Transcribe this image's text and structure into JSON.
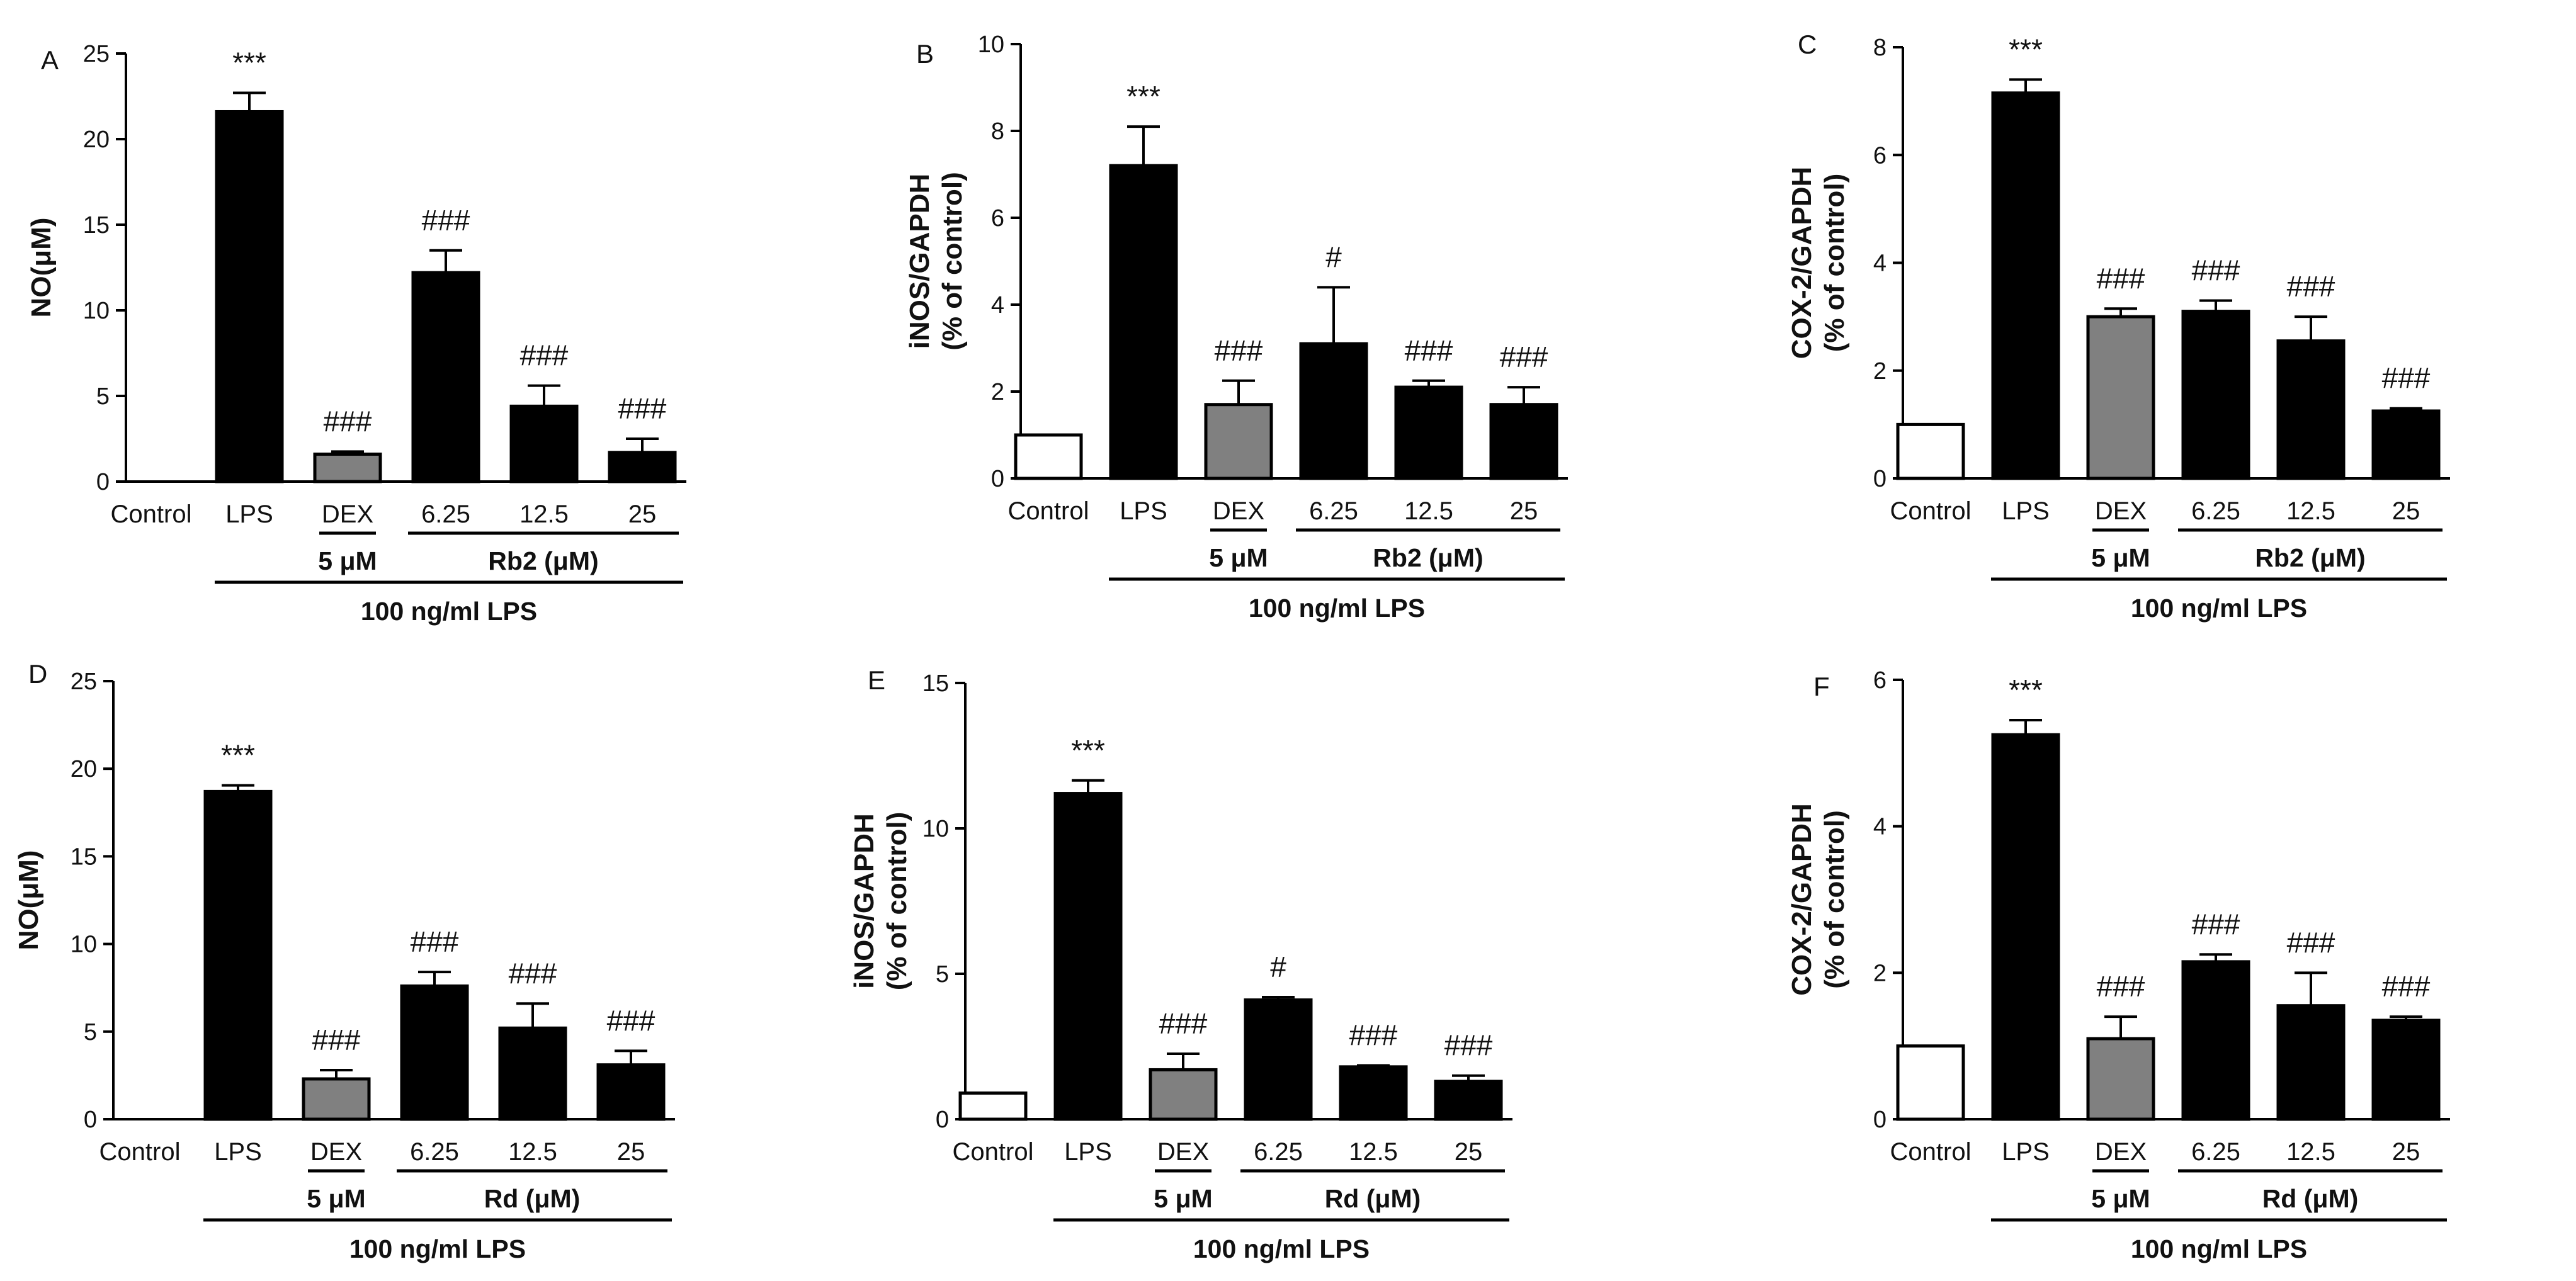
{
  "colors": {
    "control": "#ffffff",
    "lps": "#000000",
    "dex": "#808080",
    "treatment": "#000000"
  },
  "chart_data": [
    {
      "type": "bar",
      "panel": "A",
      "ylabel_lines": [
        "NO(μM)"
      ],
      "ylim": [
        0,
        25
      ],
      "yticks": [
        "0",
        "5",
        "10",
        "15",
        "20",
        "25"
      ],
      "categories": [
        "Control",
        "LPS",
        "DEX",
        "6.25",
        "12.5",
        "25"
      ],
      "values": [
        0,
        21.6,
        1.6,
        12.2,
        4.4,
        1.7
      ],
      "errors": [
        0,
        1.1,
        0.15,
        1.3,
        1.2,
        0.8
      ],
      "significance": [
        "",
        "***",
        "###",
        "###",
        "###",
        "###"
      ],
      "fill_keys": [
        "control",
        "lps",
        "dex",
        "treatment",
        "treatment",
        "treatment"
      ],
      "dex_label": "5 μM",
      "drug_label": "Rb2 (μM)",
      "lps_label": "100 ng/ml LPS"
    },
    {
      "type": "bar",
      "panel": "B",
      "ylabel_lines": [
        "iNOS/GAPDH",
        "(% of control)"
      ],
      "ylim": [
        0,
        10
      ],
      "yticks": [
        "0",
        "2",
        "4",
        "6",
        "8",
        "10"
      ],
      "categories": [
        "Control",
        "LPS",
        "DEX",
        "6.25",
        "12.5",
        "25"
      ],
      "values": [
        1.0,
        7.2,
        1.7,
        3.1,
        2.1,
        1.7
      ],
      "errors": [
        0,
        0.9,
        0.55,
        1.3,
        0.15,
        0.4
      ],
      "significance": [
        "",
        "***",
        "###",
        "#",
        "###",
        "###"
      ],
      "fill_keys": [
        "control",
        "lps",
        "dex",
        "treatment",
        "treatment",
        "treatment"
      ],
      "dex_label": "5 μM",
      "drug_label": "Rb2 (μM)",
      "lps_label": "100 ng/ml LPS"
    },
    {
      "type": "bar",
      "panel": "C",
      "ylabel_lines": [
        "COX-2/GAPDH",
        "(% of control)"
      ],
      "ylim": [
        0,
        8
      ],
      "yticks": [
        "0",
        "2",
        "4",
        "6",
        "8"
      ],
      "categories": [
        "Control",
        "LPS",
        "DEX",
        "6.25",
        "12.5",
        "25"
      ],
      "values": [
        1.0,
        7.15,
        3.0,
        3.1,
        2.55,
        1.25
      ],
      "errors": [
        0,
        0.25,
        0.15,
        0.2,
        0.45,
        0.05
      ],
      "significance": [
        "",
        "***",
        "###",
        "###",
        "###",
        "###"
      ],
      "fill_keys": [
        "control",
        "lps",
        "dex",
        "treatment",
        "treatment",
        "treatment"
      ],
      "dex_label": "5 μM",
      "drug_label": "Rb2 (μM)",
      "lps_label": "100 ng/ml LPS"
    },
    {
      "type": "bar",
      "panel": "D",
      "ylabel_lines": [
        "NO(μM)"
      ],
      "ylim": [
        0,
        25
      ],
      "yticks": [
        "0",
        "5",
        "10",
        "15",
        "20",
        "25"
      ],
      "categories": [
        "Control",
        "LPS",
        "DEX",
        "6.25",
        "12.5",
        "25"
      ],
      "values": [
        0,
        18.7,
        2.3,
        7.6,
        5.2,
        3.1
      ],
      "errors": [
        0,
        0.35,
        0.5,
        0.8,
        1.4,
        0.8
      ],
      "significance": [
        "",
        "***",
        "###",
        "###",
        "###",
        "###"
      ],
      "fill_keys": [
        "control",
        "lps",
        "dex",
        "treatment",
        "treatment",
        "treatment"
      ],
      "dex_label": "5 μM",
      "drug_label": "Rd (μM)",
      "lps_label": "100 ng/ml LPS"
    },
    {
      "type": "bar",
      "panel": "E",
      "ylabel_lines": [
        "iNOS/GAPDH",
        "(% of control)"
      ],
      "ylim": [
        0,
        15
      ],
      "yticks": [
        "0",
        "5",
        "10",
        "15"
      ],
      "categories": [
        "Control",
        "LPS",
        "DEX",
        "6.25",
        "12.5",
        "25"
      ],
      "values": [
        0.9,
        11.2,
        1.7,
        4.1,
        1.8,
        1.3
      ],
      "errors": [
        0,
        0.45,
        0.55,
        0.1,
        0.05,
        0.2
      ],
      "significance": [
        "",
        "***",
        "###",
        "#",
        "###",
        "###"
      ],
      "fill_keys": [
        "control",
        "lps",
        "dex",
        "treatment",
        "treatment",
        "treatment"
      ],
      "dex_label": "5 μM",
      "drug_label": "Rd (μM)",
      "lps_label": "100 ng/ml LPS"
    },
    {
      "type": "bar",
      "panel": "F",
      "ylabel_lines": [
        "COX-2/GAPDH",
        "(% of control)"
      ],
      "ylim": [
        0,
        6
      ],
      "yticks": [
        "0",
        "2",
        "4",
        "6"
      ],
      "categories": [
        "Control",
        "LPS",
        "DEX",
        "6.25",
        "12.5",
        "25"
      ],
      "values": [
        1.0,
        5.25,
        1.1,
        2.15,
        1.55,
        1.35
      ],
      "errors": [
        0,
        0.2,
        0.3,
        0.1,
        0.45,
        0.05
      ],
      "significance": [
        "",
        "***",
        "###",
        "###",
        "###",
        "###"
      ],
      "fill_keys": [
        "control",
        "lps",
        "dex",
        "treatment",
        "treatment",
        "treatment"
      ],
      "dex_label": "5 μM",
      "drug_label": "Rd (μM)",
      "lps_label": "100 ng/ml LPS"
    }
  ]
}
